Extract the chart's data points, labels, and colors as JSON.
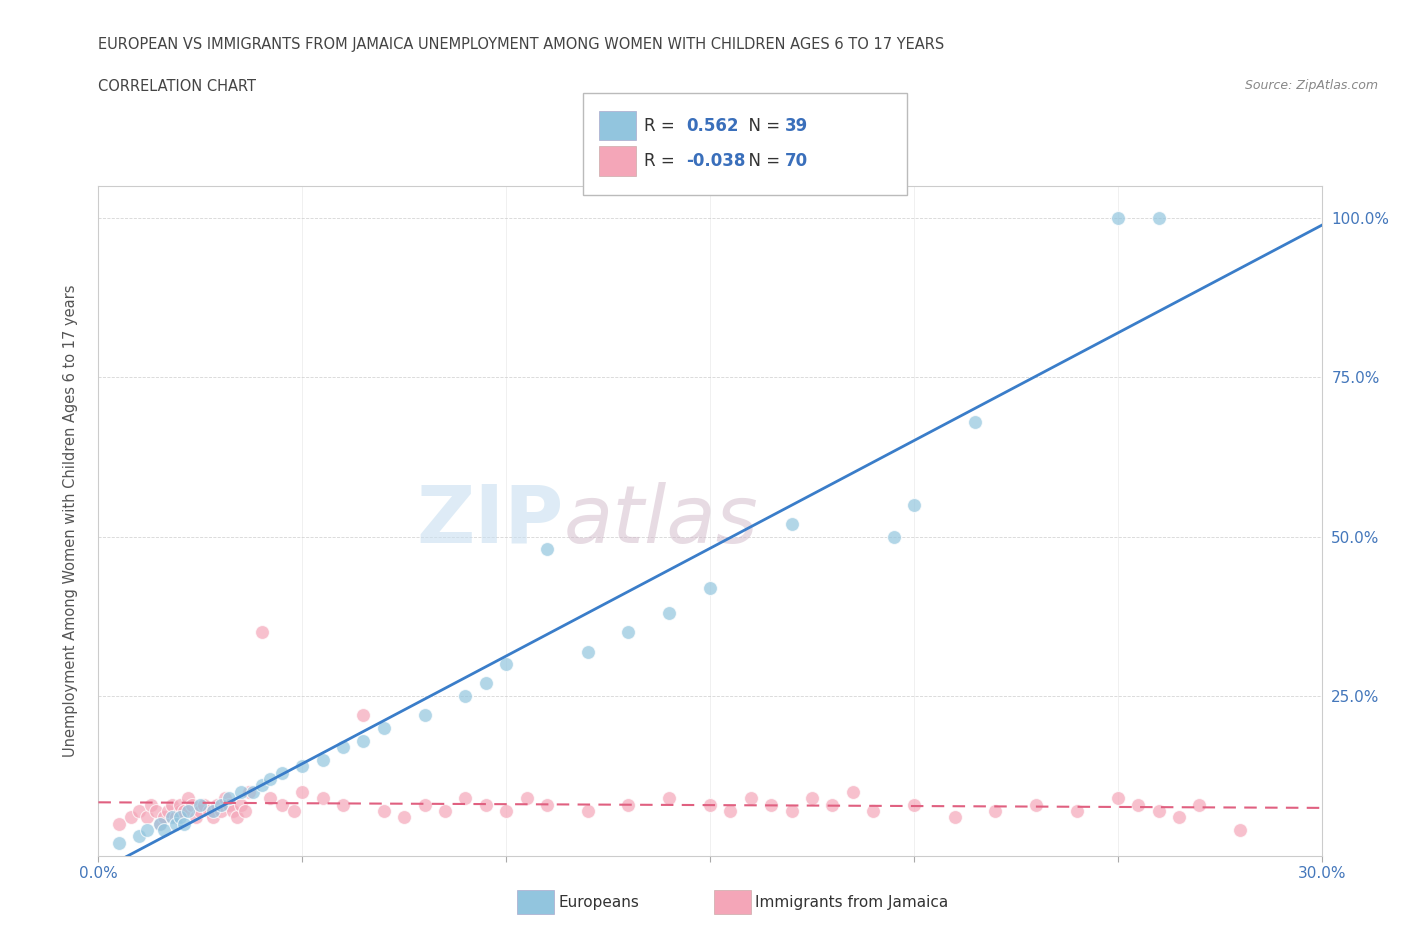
{
  "title_line1": "EUROPEAN VS IMMIGRANTS FROM JAMAICA UNEMPLOYMENT AMONG WOMEN WITH CHILDREN AGES 6 TO 17 YEARS",
  "title_line2": "CORRELATION CHART",
  "source": "Source: ZipAtlas.com",
  "ylabel": "Unemployment Among Women with Children Ages 6 to 17 years",
  "xlim": [
    0.0,
    0.3
  ],
  "ylim": [
    0.0,
    1.05
  ],
  "blue_color": "#92c5de",
  "pink_color": "#f4a6b8",
  "blue_line_color": "#3a7dc9",
  "pink_line_color": "#e06080",
  "watermark_zip": "ZIP",
  "watermark_atlas": "atlas",
  "legend_R_blue": "0.562",
  "legend_N_blue": "39",
  "legend_R_pink": "-0.038",
  "legend_N_pink": "70",
  "background_color": "#ffffff",
  "grid_color": "#cccccc",
  "blue_x": [
    0.005,
    0.01,
    0.012,
    0.015,
    0.016,
    0.018,
    0.019,
    0.02,
    0.021,
    0.022,
    0.025,
    0.028,
    0.03,
    0.032,
    0.035,
    0.038,
    0.04,
    0.042,
    0.045,
    0.05,
    0.055,
    0.06,
    0.065,
    0.07,
    0.08,
    0.09,
    0.095,
    0.1,
    0.11,
    0.12,
    0.13,
    0.14,
    0.15,
    0.17,
    0.195,
    0.2,
    0.215,
    0.25,
    0.26
  ],
  "blue_y": [
    0.02,
    0.03,
    0.04,
    0.05,
    0.04,
    0.06,
    0.05,
    0.06,
    0.05,
    0.07,
    0.08,
    0.07,
    0.08,
    0.09,
    0.1,
    0.1,
    0.11,
    0.12,
    0.13,
    0.14,
    0.15,
    0.17,
    0.18,
    0.2,
    0.22,
    0.25,
    0.27,
    0.3,
    0.48,
    0.32,
    0.35,
    0.38,
    0.42,
    0.52,
    0.5,
    0.55,
    0.68,
    1.0,
    1.0
  ],
  "pink_x": [
    0.005,
    0.008,
    0.01,
    0.012,
    0.013,
    0.014,
    0.015,
    0.016,
    0.017,
    0.018,
    0.019,
    0.02,
    0.02,
    0.021,
    0.022,
    0.023,
    0.024,
    0.025,
    0.026,
    0.027,
    0.028,
    0.029,
    0.03,
    0.031,
    0.032,
    0.033,
    0.034,
    0.035,
    0.036,
    0.037,
    0.04,
    0.042,
    0.045,
    0.048,
    0.05,
    0.055,
    0.06,
    0.065,
    0.07,
    0.075,
    0.08,
    0.085,
    0.09,
    0.095,
    0.1,
    0.105,
    0.11,
    0.12,
    0.13,
    0.14,
    0.15,
    0.155,
    0.16,
    0.165,
    0.17,
    0.175,
    0.18,
    0.185,
    0.19,
    0.2,
    0.21,
    0.22,
    0.23,
    0.24,
    0.25,
    0.255,
    0.26,
    0.265,
    0.27,
    0.28
  ],
  "pink_y": [
    0.05,
    0.06,
    0.07,
    0.06,
    0.08,
    0.07,
    0.05,
    0.06,
    0.07,
    0.08,
    0.06,
    0.07,
    0.08,
    0.07,
    0.09,
    0.08,
    0.06,
    0.07,
    0.08,
    0.07,
    0.06,
    0.08,
    0.07,
    0.09,
    0.08,
    0.07,
    0.06,
    0.08,
    0.07,
    0.1,
    0.35,
    0.09,
    0.08,
    0.07,
    0.1,
    0.09,
    0.08,
    0.22,
    0.07,
    0.06,
    0.08,
    0.07,
    0.09,
    0.08,
    0.07,
    0.09,
    0.08,
    0.07,
    0.08,
    0.09,
    0.08,
    0.07,
    0.09,
    0.08,
    0.07,
    0.09,
    0.08,
    0.1,
    0.07,
    0.08,
    0.06,
    0.07,
    0.08,
    0.07,
    0.09,
    0.08,
    0.07,
    0.06,
    0.08,
    0.04
  ]
}
